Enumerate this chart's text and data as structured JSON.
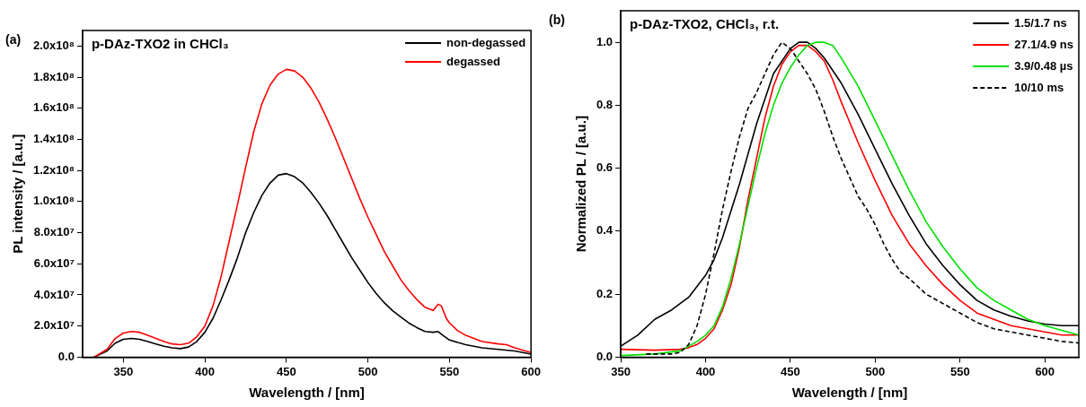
{
  "chart_data": [
    {
      "type": "line",
      "title": "p-DAz-TXO2 in CHCl₃",
      "xlabel": "Wavelength / [nm]",
      "ylabel": "PL intensity / [a.u.]",
      "annotations": [
        "(a)"
      ],
      "xlim": [
        325,
        600
      ],
      "xticks": [
        350,
        400,
        450,
        500,
        550,
        600
      ],
      "ylim": [
        0,
        210000000.0
      ],
      "yticks": [
        {
          "value": 0,
          "label": "0.0"
        },
        {
          "value": 20000000.0,
          "label": "2.0x10⁷"
        },
        {
          "value": 40000000.0,
          "label": "4.0x10⁷"
        },
        {
          "value": 60000000.0,
          "label": "6.0x10⁷"
        },
        {
          "value": 80000000.0,
          "label": "8.0x10⁷"
        },
        {
          "value": 100000000.0,
          "label": "1.0x10⁸"
        },
        {
          "value": 120000000.0,
          "label": "1.2x10⁸"
        },
        {
          "value": 140000000.0,
          "label": "1.4x10⁸"
        },
        {
          "value": 160000000.0,
          "label": "1.6x10⁸"
        },
        {
          "value": 180000000.0,
          "label": "1.8x10⁸"
        },
        {
          "value": 200000000.0,
          "label": "2.0x10⁸"
        }
      ],
      "grid": false,
      "legend": "top right",
      "marker": "none",
      "series": [
        {
          "name": "non-degassed",
          "color": "#000000",
          "x": [
            332,
            340,
            345,
            350,
            355,
            360,
            365,
            370,
            375,
            380,
            385,
            390,
            395,
            400,
            405,
            410,
            415,
            420,
            425,
            430,
            435,
            440,
            445,
            450,
            455,
            460,
            465,
            470,
            475,
            480,
            485,
            490,
            495,
            500,
            505,
            510,
            515,
            520,
            525,
            530,
            535,
            540,
            543,
            546,
            550,
            560,
            570,
            580,
            590,
            600
          ],
          "values": [
            0,
            4000000.0,
            9000000.0,
            11500000.0,
            12000000.0,
            11500000.0,
            10000000.0,
            8500000.0,
            7000000.0,
            6000000.0,
            5500000.0,
            6500000.0,
            10000000.0,
            16000000.0,
            25000000.0,
            37000000.0,
            50000000.0,
            64000000.0,
            80000000.0,
            93000000.0,
            104000000.0,
            112000000.0,
            117000000.0,
            118000000.0,
            116000000.0,
            112000000.0,
            106000000.0,
            99000000.0,
            91000000.0,
            82000000.0,
            73000000.0,
            64000000.0,
            56000000.0,
            48000000.0,
            41000000.0,
            35000000.0,
            30000000.0,
            26000000.0,
            22000000.0,
            19000000.0,
            16500000.0,
            16000000.0,
            16500000.0,
            14000000.0,
            11000000.0,
            8000000.0,
            6000000.0,
            5000000.0,
            4000000.0,
            2000000.0
          ]
        },
        {
          "name": "degassed",
          "color": "#ff0000",
          "x": [
            332,
            340,
            345,
            350,
            355,
            360,
            365,
            370,
            375,
            380,
            385,
            390,
            395,
            400,
            405,
            410,
            415,
            420,
            425,
            430,
            435,
            440,
            445,
            450,
            455,
            460,
            465,
            470,
            475,
            480,
            485,
            490,
            495,
            500,
            505,
            510,
            515,
            520,
            525,
            530,
            535,
            540,
            543,
            545,
            548,
            550,
            555,
            560,
            570,
            580,
            585,
            590,
            600
          ],
          "values": [
            0,
            5000000.0,
            12000000.0,
            15500000.0,
            16500000.0,
            16000000.0,
            14000000.0,
            12000000.0,
            10000000.0,
            8500000.0,
            8000000.0,
            9000000.0,
            13000000.0,
            20000000.0,
            33000000.0,
            52000000.0,
            75000000.0,
            98000000.0,
            122000000.0,
            145000000.0,
            163000000.0,
            175000000.0,
            182000000.0,
            185000000.0,
            184000000.0,
            180000000.0,
            173000000.0,
            164000000.0,
            153000000.0,
            141000000.0,
            128000000.0,
            115000000.0,
            102000000.0,
            90000000.0,
            79000000.0,
            68000000.0,
            59000000.0,
            50000000.0,
            43000000.0,
            37000000.0,
            32000000.0,
            30000000.0,
            34000000.0,
            33000000.0,
            25000000.0,
            22000000.0,
            17000000.0,
            14000000.0,
            10000000.0,
            8500000.0,
            8000000.0,
            6000000.0,
            3000000.0
          ]
        }
      ]
    },
    {
      "type": "line",
      "title": "p-DAz-TXO2, CHCl₃, r.t.",
      "xlabel": "Wavelength / [nm]",
      "ylabel": "Normalized PL / [a.u.]",
      "annotations": [
        "(b)"
      ],
      "xlim": [
        350,
        620
      ],
      "xticks": [
        350,
        400,
        450,
        500,
        550,
        600
      ],
      "ylim": [
        0,
        1.1
      ],
      "yticks": [
        {
          "value": 0,
          "label": "0.0"
        },
        {
          "value": 0.2,
          "label": "0.2"
        },
        {
          "value": 0.4,
          "label": "0.4"
        },
        {
          "value": 0.6,
          "label": "0.6"
        },
        {
          "value": 0.8,
          "label": "0.8"
        },
        {
          "value": 1,
          "label": "1.0"
        }
      ],
      "grid": false,
      "legend": "top right",
      "marker": "none",
      "series": [
        {
          "name": "1.5/1.7 ns",
          "color": "#000000",
          "line_style": "solid",
          "x": [
            350,
            360,
            370,
            375,
            380,
            390,
            400,
            405,
            410,
            420,
            430,
            440,
            450,
            455,
            460,
            465,
            470,
            480,
            490,
            500,
            510,
            520,
            530,
            540,
            550,
            560,
            570,
            580,
            590,
            600,
            610,
            620
          ],
          "values": [
            0.035,
            0.07,
            0.12,
            0.135,
            0.15,
            0.19,
            0.26,
            0.31,
            0.38,
            0.55,
            0.74,
            0.9,
            0.98,
            1.0,
            1.0,
            0.98,
            0.95,
            0.87,
            0.77,
            0.66,
            0.55,
            0.45,
            0.36,
            0.29,
            0.23,
            0.18,
            0.15,
            0.13,
            0.115,
            0.105,
            0.1,
            0.1
          ]
        },
        {
          "name": "27.1/4.9 ns",
          "color": "#ff0000",
          "line_style": "solid",
          "x": [
            350,
            370,
            385,
            390,
            395,
            400,
            405,
            410,
            415,
            420,
            425,
            430,
            435,
            440,
            445,
            450,
            455,
            460,
            465,
            470,
            475,
            480,
            490,
            500,
            510,
            520,
            530,
            540,
            550,
            560,
            570,
            580,
            590,
            600,
            610,
            620
          ],
          "values": [
            0.025,
            0.022,
            0.025,
            0.03,
            0.04,
            0.06,
            0.09,
            0.15,
            0.23,
            0.35,
            0.5,
            0.63,
            0.76,
            0.86,
            0.93,
            0.97,
            0.99,
            0.99,
            0.97,
            0.94,
            0.88,
            0.81,
            0.68,
            0.56,
            0.45,
            0.36,
            0.29,
            0.23,
            0.18,
            0.14,
            0.12,
            0.1,
            0.09,
            0.08,
            0.07,
            0.07
          ]
        },
        {
          "name": "3.9/0.48 µs",
          "color": "#00e000",
          "line_style": "solid",
          "x": [
            350,
            370,
            385,
            390,
            395,
            400,
            405,
            410,
            415,
            420,
            425,
            430,
            435,
            440,
            445,
            450,
            455,
            460,
            465,
            470,
            475,
            480,
            490,
            500,
            510,
            520,
            530,
            540,
            550,
            560,
            570,
            580,
            590,
            600,
            610,
            620
          ],
          "values": [
            0.005,
            0.01,
            0.02,
            0.035,
            0.05,
            0.07,
            0.1,
            0.16,
            0.25,
            0.36,
            0.48,
            0.6,
            0.71,
            0.8,
            0.87,
            0.92,
            0.96,
            0.99,
            1.0,
            1.0,
            0.99,
            0.95,
            0.86,
            0.75,
            0.64,
            0.53,
            0.43,
            0.35,
            0.28,
            0.22,
            0.18,
            0.15,
            0.12,
            0.1,
            0.085,
            0.07
          ]
        },
        {
          "name": "10/10 ms",
          "color": "#000000",
          "line_style": "dashed",
          "x": [
            365,
            380,
            385,
            390,
            395,
            400,
            405,
            410,
            415,
            420,
            425,
            430,
            435,
            440,
            445,
            450,
            455,
            460,
            465,
            470,
            475,
            480,
            485,
            490,
            495,
            500,
            505,
            510,
            515,
            520,
            530,
            540,
            550,
            560,
            570,
            580,
            590,
            600,
            610,
            620
          ],
          "values": [
            0.01,
            0.01,
            0.015,
            0.04,
            0.1,
            0.2,
            0.33,
            0.47,
            0.59,
            0.7,
            0.79,
            0.84,
            0.9,
            0.96,
            1.0,
            0.98,
            0.94,
            0.9,
            0.85,
            0.78,
            0.7,
            0.63,
            0.57,
            0.51,
            0.47,
            0.42,
            0.36,
            0.31,
            0.27,
            0.25,
            0.2,
            0.17,
            0.14,
            0.11,
            0.09,
            0.08,
            0.07,
            0.06,
            0.05,
            0.045
          ]
        }
      ]
    }
  ]
}
